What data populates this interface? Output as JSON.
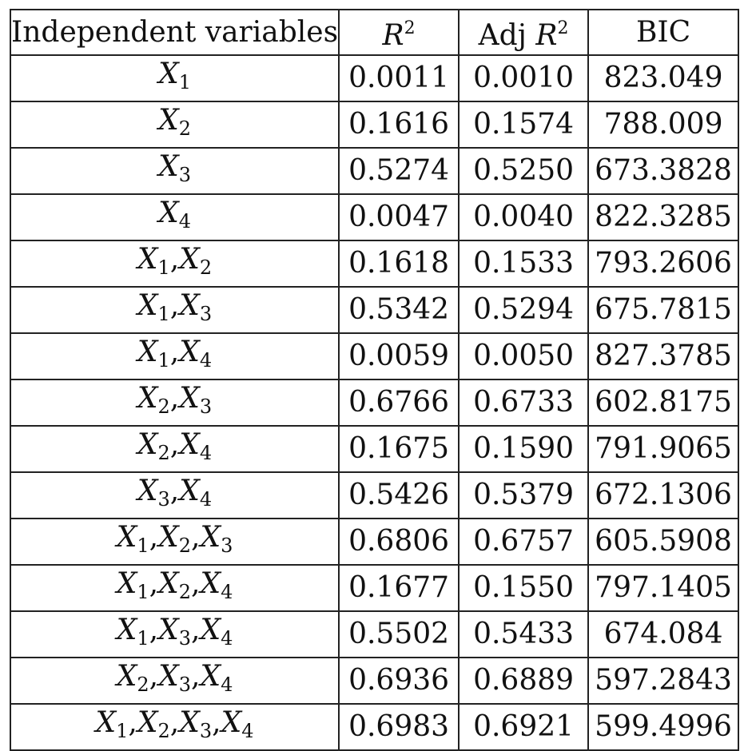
{
  "table": {
    "headers": [
      {
        "text": "Independent variables"
      },
      {
        "base": "R",
        "sup": "2"
      },
      {
        "prefix": "Adj ",
        "base": "R",
        "sup": "2"
      },
      {
        "text": "BIC"
      }
    ],
    "rows": [
      {
        "vars": [
          "1"
        ],
        "r2": "0.0011",
        "adj_r2": "0.0010",
        "bic": "823.049"
      },
      {
        "vars": [
          "2"
        ],
        "r2": "0.1616",
        "adj_r2": "0.1574",
        "bic": "788.009"
      },
      {
        "vars": [
          "3"
        ],
        "r2": "0.5274",
        "adj_r2": "0.5250",
        "bic": "673.3828"
      },
      {
        "vars": [
          "4"
        ],
        "r2": "0.0047",
        "adj_r2": "0.0040",
        "bic": "822.3285"
      },
      {
        "vars": [
          "1",
          "2"
        ],
        "r2": "0.1618",
        "adj_r2": "0.1533",
        "bic": "793.2606"
      },
      {
        "vars": [
          "1",
          "3"
        ],
        "r2": "0.5342",
        "adj_r2": "0.5294",
        "bic": "675.7815"
      },
      {
        "vars": [
          "1",
          "4"
        ],
        "r2": "0.0059",
        "adj_r2": "0.0050",
        "bic": "827.3785"
      },
      {
        "vars": [
          "2",
          "3"
        ],
        "r2": "0.6766",
        "adj_r2": "0.6733",
        "bic": "602.8175"
      },
      {
        "vars": [
          "2",
          "4"
        ],
        "r2": "0.1675",
        "adj_r2": "0.1590",
        "bic": "791.9065"
      },
      {
        "vars": [
          "3",
          "4"
        ],
        "r2": "0.5426",
        "adj_r2": "0.5379",
        "bic": "672.1306"
      },
      {
        "vars": [
          "1",
          "2",
          "3"
        ],
        "r2": "0.6806",
        "adj_r2": "0.6757",
        "bic": "605.5908"
      },
      {
        "vars": [
          "1",
          "2",
          "4"
        ],
        "r2": "0.1677",
        "adj_r2": "0.1550",
        "bic": "797.1405"
      },
      {
        "vars": [
          "1",
          "3",
          "4"
        ],
        "r2": "0.5502",
        "adj_r2": "0.5433",
        "bic": "674.084"
      },
      {
        "vars": [
          "2",
          "3",
          "4"
        ],
        "r2": "0.6936",
        "adj_r2": "0.6889",
        "bic": "597.2843"
      },
      {
        "vars": [
          "1",
          "2",
          "3",
          "4"
        ],
        "r2": "0.6983",
        "adj_r2": "0.6921",
        "bic": "599.4996"
      }
    ],
    "var_symbol": "X",
    "var_separator": ","
  }
}
